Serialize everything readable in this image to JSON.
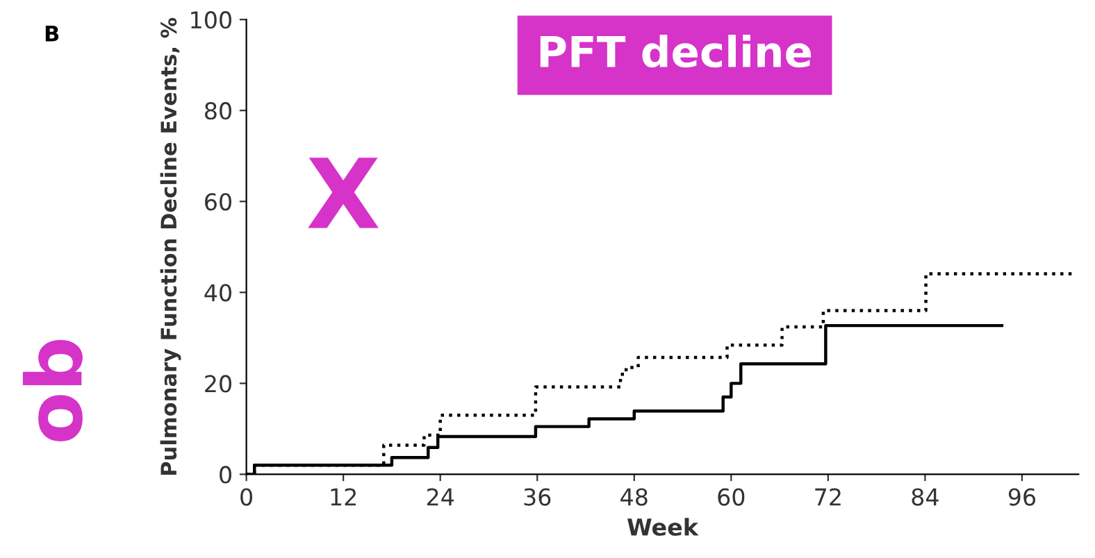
{
  "chart_data": {
    "type": "step",
    "xlabel": "Week",
    "ylabel": "Pulmonary Function Decline Events, %",
    "xlim": [
      0,
      103
    ],
    "xticks": [
      0,
      12,
      24,
      36,
      48,
      60,
      72,
      84,
      96
    ],
    "ylim": [
      0,
      100
    ],
    "yticks": [
      0,
      20,
      40,
      60,
      80,
      100
    ],
    "grid": false,
    "legend": false,
    "series": [
      {
        "color": "#000000",
        "line_style": "solid",
        "x": [
          0,
          1,
          18,
          22.5,
          23.7,
          35.8,
          42.4,
          48,
          59,
          60,
          61.2,
          71.7,
          93.5
        ],
        "values": [
          0,
          2,
          3.7,
          5.9,
          8.3,
          10.5,
          12.2,
          13.9,
          17,
          20,
          24.3,
          32.7,
          32.7
        ]
      },
      {
        "color": "#000000",
        "line_style": "dotted",
        "x": [
          0,
          1,
          17,
          22,
          24,
          35.8,
          46.3,
          47,
          48.5,
          59.5,
          66.3,
          71.4,
          84.1,
          102.6
        ],
        "values": [
          0,
          2,
          6.4,
          8.6,
          13,
          19.2,
          22,
          23.5,
          25.7,
          28.4,
          32.4,
          36,
          44.1,
          44.1
        ]
      }
    ],
    "annotations": [
      "B",
      "PFT decline",
      "ob",
      "X"
    ]
  }
}
